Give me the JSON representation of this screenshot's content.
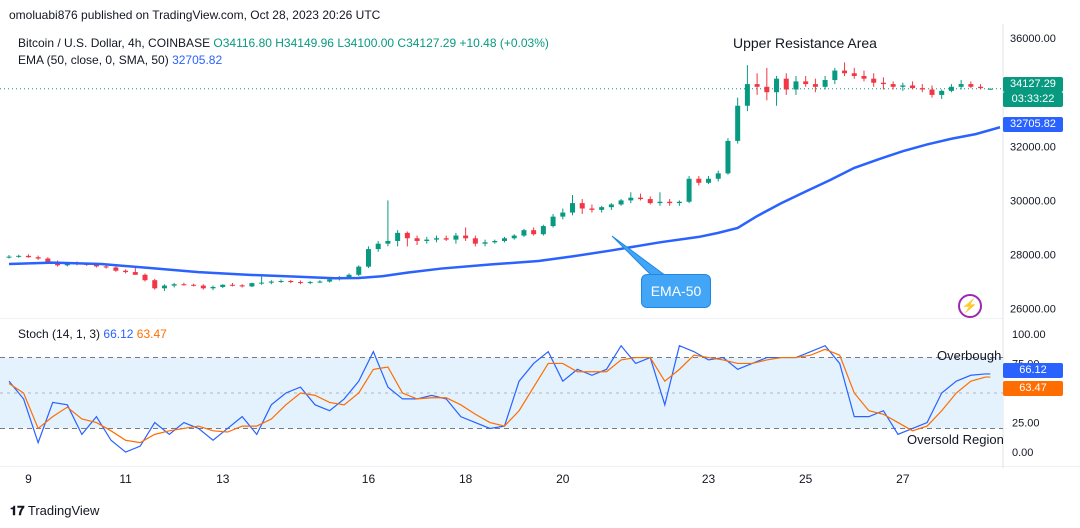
{
  "header": {
    "published": "omoluabi876 published on TradingView.com, Oct 28, 2023 20:26 UTC"
  },
  "legend": {
    "symbol": "Bitcoin / U.S. Dollar, 4h, COINBASE",
    "o": "O34116.80",
    "h": "H34149.96",
    "l": "L34100.00",
    "c": "C34127.29",
    "change": "+10.48 (+0.03%)",
    "ema_label": "EMA (50, close, 0, SMA, 50)",
    "ema_value": "32705.82",
    "stoch_label": "Stoch (14, 1, 3)",
    "stoch_k": "66.12",
    "stoch_d": "63.47"
  },
  "annotations": {
    "upper_resistance": "Upper Resistance Area",
    "ema_callout": "EMA-50",
    "overbought": "Overbough",
    "oversold": "Oversold Region"
  },
  "price_tags": {
    "last": "34127.29",
    "countdown": "03:33:22",
    "ema": "32705.82"
  },
  "stoch_tags": {
    "k": "66.12",
    "d": "63.47"
  },
  "footer": {
    "brand": "TradingView"
  },
  "colors": {
    "up": "#089981",
    "down": "#f23645",
    "ema": "#2962ff",
    "stoch_k": "#2962ff",
    "stoch_d": "#ff6d00",
    "band": "#e3f2fd",
    "callout": "#42a5f5"
  },
  "chart_data": [
    {
      "type": "line",
      "title": "Bitcoin / U.S. Dollar, 4h, COINBASE",
      "y_ticks": [
        "26000.00",
        "28000.00",
        "30000.00",
        "32000.00",
        "36000.00"
      ],
      "ylim": [
        25800,
        36300
      ],
      "x_ticks": [
        "9",
        "11",
        "13",
        "16",
        "18",
        "20",
        "23",
        "25",
        "27"
      ],
      "x_tick_days": [
        9,
        11,
        13,
        16,
        18,
        20,
        23,
        25,
        27
      ],
      "xlim": [
        8.6,
        29.0
      ],
      "series": [
        {
          "name": "EMA (50, close, 0, SMA, 50)",
          "x": [
            8.6,
            9.5,
            10.5,
            11.5,
            12.5,
            13.5,
            14.5,
            15.3,
            15.8,
            16.3,
            16.8,
            17.5,
            18.5,
            19.5,
            20.2,
            21,
            22,
            22.8,
            23.2,
            23.6,
            24.0,
            24.5,
            25,
            25.5,
            26,
            26.5,
            27,
            27.5,
            28,
            28.5,
            29.0
          ],
          "y": [
            27650,
            27700,
            27650,
            27500,
            27350,
            27250,
            27180,
            27120,
            27130,
            27200,
            27330,
            27480,
            27630,
            27760,
            27930,
            28150,
            28450,
            28650,
            28800,
            28980,
            29420,
            29900,
            30330,
            30750,
            31200,
            31520,
            31820,
            32070,
            32280,
            32450,
            32705
          ]
        }
      ],
      "candles_ohlc": [
        [
          8.6,
          27900,
          27980,
          27850,
          27920
        ],
        [
          8.8,
          27920,
          27990,
          27880,
          27950
        ],
        [
          9.0,
          27950,
          28010,
          27880,
          27900
        ],
        [
          9.2,
          27900,
          27960,
          27800,
          27850
        ],
        [
          9.4,
          27850,
          27900,
          27650,
          27700
        ],
        [
          9.6,
          27700,
          27780,
          27550,
          27600
        ],
        [
          9.8,
          27600,
          27720,
          27560,
          27680
        ],
        [
          10.0,
          27680,
          27740,
          27600,
          27650
        ],
        [
          10.2,
          27650,
          27700,
          27580,
          27620
        ],
        [
          10.4,
          27620,
          27680,
          27520,
          27560
        ],
        [
          10.6,
          27560,
          27620,
          27480,
          27520
        ],
        [
          10.8,
          27520,
          27560,
          27360,
          27400
        ],
        [
          11.0,
          27400,
          27450,
          27300,
          27350
        ],
        [
          11.2,
          27350,
          27500,
          27250,
          27250
        ],
        [
          11.4,
          27250,
          27300,
          27000,
          27050
        ],
        [
          11.6,
          27050,
          27100,
          26700,
          26750
        ],
        [
          11.8,
          26750,
          26900,
          26650,
          26850
        ],
        [
          12.0,
          26850,
          26950,
          26780,
          26900
        ],
        [
          12.2,
          26900,
          26960,
          26850,
          26880
        ],
        [
          12.4,
          26880,
          26920,
          26820,
          26850
        ],
        [
          12.6,
          26850,
          26900,
          26700,
          26750
        ],
        [
          12.8,
          26750,
          26850,
          26680,
          26800
        ],
        [
          13.0,
          26800,
          26900,
          26760,
          26880
        ],
        [
          13.2,
          26880,
          26950,
          26820,
          26860
        ],
        [
          13.4,
          26860,
          26900,
          26780,
          26820
        ],
        [
          13.6,
          26820,
          26960,
          26800,
          26940
        ],
        [
          13.8,
          26940,
          27180,
          26880,
          26960
        ],
        [
          14.0,
          26960,
          27050,
          26900,
          27000
        ],
        [
          14.2,
          27000,
          27080,
          26950,
          27020
        ],
        [
          14.4,
          27020,
          27060,
          26940,
          26980
        ],
        [
          14.6,
          26980,
          27040,
          26900,
          26950
        ],
        [
          14.8,
          26950,
          27020,
          26900,
          26980
        ],
        [
          15.0,
          26980,
          27050,
          26940,
          27000
        ],
        [
          15.2,
          27000,
          27100,
          26960,
          27080
        ],
        [
          15.4,
          27080,
          27200,
          27040,
          27150
        ],
        [
          15.6,
          27150,
          27300,
          27100,
          27250
        ],
        [
          15.8,
          27250,
          27600,
          27200,
          27550
        ],
        [
          16.0,
          27550,
          28300,
          27500,
          28200
        ],
        [
          16.2,
          28200,
          28500,
          28100,
          28400
        ],
        [
          16.4,
          28400,
          30000,
          28300,
          28500
        ],
        [
          16.6,
          28500,
          28900,
          28300,
          28800
        ],
        [
          16.8,
          28800,
          28850,
          28300,
          28600
        ],
        [
          17.0,
          28600,
          28700,
          28350,
          28500
        ],
        [
          17.2,
          28500,
          28650,
          28400,
          28550
        ],
        [
          17.4,
          28550,
          28700,
          28450,
          28600
        ],
        [
          17.6,
          28600,
          28700,
          28500,
          28550
        ],
        [
          17.8,
          28550,
          28800,
          28400,
          28700
        ],
        [
          18.0,
          28700,
          29000,
          28500,
          28600
        ],
        [
          18.2,
          28600,
          28700,
          28300,
          28400
        ],
        [
          18.4,
          28400,
          28550,
          28300,
          28450
        ],
        [
          18.6,
          28450,
          28550,
          28400,
          28500
        ],
        [
          18.8,
          28500,
          28650,
          28450,
          28600
        ],
        [
          19.0,
          28600,
          28750,
          28550,
          28700
        ],
        [
          19.2,
          28700,
          28950,
          28650,
          28900
        ],
        [
          19.4,
          28900,
          29000,
          28700,
          28750
        ],
        [
          19.6,
          28750,
          29100,
          28700,
          29050
        ],
        [
          19.8,
          29050,
          29500,
          29000,
          29400
        ],
        [
          20.0,
          29400,
          29700,
          29300,
          29550
        ],
        [
          20.2,
          29550,
          30200,
          29450,
          29900
        ],
        [
          20.4,
          29900,
          30050,
          29500,
          29700
        ],
        [
          20.6,
          29700,
          29850,
          29550,
          29650
        ],
        [
          20.8,
          29650,
          29800,
          29550,
          29750
        ],
        [
          21.0,
          29750,
          29900,
          29650,
          29850
        ],
        [
          21.2,
          29850,
          30050,
          29800,
          30000
        ],
        [
          21.4,
          30000,
          30300,
          29900,
          30100
        ],
        [
          21.6,
          30100,
          30250,
          30000,
          30050
        ],
        [
          21.8,
          30050,
          30150,
          29850,
          29900
        ],
        [
          22.0,
          29900,
          30300,
          29800,
          29950
        ],
        [
          22.2,
          29950,
          30050,
          29800,
          29900
        ],
        [
          22.4,
          29900,
          30000,
          29800,
          29950
        ],
        [
          22.6,
          29950,
          30900,
          29900,
          30800
        ],
        [
          22.8,
          30800,
          30900,
          30550,
          30650
        ],
        [
          23.0,
          30650,
          30900,
          30600,
          30800
        ],
        [
          23.2,
          30800,
          31100,
          30700,
          31000
        ],
        [
          23.4,
          31000,
          32300,
          30950,
          32200
        ],
        [
          23.6,
          32200,
          33800,
          32100,
          33500
        ],
        [
          23.8,
          33500,
          35000,
          33300,
          34300
        ],
        [
          24.0,
          34300,
          34700,
          33900,
          34200
        ],
        [
          24.2,
          34200,
          34900,
          33700,
          34000
        ],
        [
          24.4,
          34000,
          34600,
          33500,
          34500
        ],
        [
          24.6,
          34500,
          34700,
          33900,
          34100
        ],
        [
          24.8,
          34100,
          34600,
          33900,
          34400
        ],
        [
          25.0,
          34400,
          34600,
          34200,
          34300
        ],
        [
          25.2,
          34300,
          34500,
          34000,
          34200
        ],
        [
          25.4,
          34200,
          34600,
          34100,
          34450
        ],
        [
          25.6,
          34450,
          34900,
          34300,
          34800
        ],
        [
          25.8,
          34800,
          35100,
          34600,
          34700
        ],
        [
          26.0,
          34700,
          34900,
          34500,
          34600
        ],
        [
          26.2,
          34600,
          34800,
          34400,
          34500
        ],
        [
          26.4,
          34500,
          34700,
          34200,
          34350
        ],
        [
          26.6,
          34350,
          34550,
          34100,
          34300
        ],
        [
          26.8,
          34300,
          34400,
          34100,
          34200
        ],
        [
          27.0,
          34200,
          34350,
          34050,
          34250
        ],
        [
          27.2,
          34250,
          34400,
          34100,
          34150
        ],
        [
          27.4,
          34150,
          34300,
          34000,
          34100
        ],
        [
          27.6,
          34100,
          34250,
          33800,
          33900
        ],
        [
          27.8,
          33900,
          34100,
          33750,
          34050
        ],
        [
          28.0,
          34050,
          34300,
          34000,
          34200
        ],
        [
          28.2,
          34200,
          34450,
          34100,
          34300
        ],
        [
          28.4,
          34300,
          34400,
          34150,
          34200
        ],
        [
          28.6,
          34200,
          34300,
          34100,
          34150
        ],
        [
          28.8,
          34116.8,
          34149.96,
          34100,
          34127.29
        ]
      ]
    },
    {
      "type": "line",
      "title": "Stoch (14, 1, 3)",
      "y_ticks": [
        "0.00",
        "25.00",
        "75.00",
        "100.00"
      ],
      "ylim": [
        -5,
        105
      ],
      "bands": [
        20,
        80
      ],
      "xlim": [
        8.6,
        29.0
      ],
      "series": [
        {
          "name": "%K",
          "x": [
            8.6,
            8.9,
            9.2,
            9.5,
            9.8,
            10.1,
            10.4,
            10.7,
            11.0,
            11.3,
            11.6,
            11.9,
            12.2,
            12.5,
            12.8,
            13.1,
            13.4,
            13.7,
            14.0,
            14.3,
            14.6,
            14.9,
            15.2,
            15.5,
            15.8,
            16.1,
            16.4,
            16.7,
            17.0,
            17.3,
            17.6,
            17.9,
            18.2,
            18.5,
            18.8,
            19.1,
            19.4,
            19.7,
            20.0,
            20.3,
            20.6,
            20.9,
            21.2,
            21.5,
            21.8,
            22.1,
            22.4,
            22.7,
            23.0,
            23.3,
            23.6,
            23.9,
            24.2,
            24.5,
            24.8,
            25.1,
            25.4,
            25.7,
            26.0,
            26.3,
            26.6,
            26.9,
            27.2,
            27.5,
            27.8,
            28.1,
            28.4,
            28.7,
            28.8
          ],
          "y": [
            60,
            45,
            8,
            42,
            40,
            15,
            30,
            10,
            0,
            5,
            25,
            15,
            25,
            20,
            10,
            20,
            30,
            15,
            40,
            50,
            55,
            40,
            35,
            45,
            60,
            85,
            55,
            45,
            45,
            48,
            45,
            30,
            25,
            20,
            22,
            60,
            75,
            85,
            60,
            70,
            65,
            70,
            90,
            75,
            80,
            40,
            90,
            85,
            78,
            80,
            70,
            75,
            80,
            80,
            80,
            85,
            90,
            75,
            30,
            30,
            35,
            15,
            20,
            25,
            50,
            60,
            65,
            66.12,
            66.12
          ]
        },
        {
          "name": "%D",
          "x": [
            8.6,
            8.9,
            9.2,
            9.5,
            9.8,
            10.1,
            10.4,
            10.7,
            11.0,
            11.3,
            11.6,
            11.9,
            12.2,
            12.5,
            12.8,
            13.1,
            13.4,
            13.7,
            14.0,
            14.3,
            14.6,
            14.9,
            15.2,
            15.5,
            15.8,
            16.1,
            16.4,
            16.7,
            17.0,
            17.3,
            17.6,
            17.9,
            18.2,
            18.5,
            18.8,
            19.1,
            19.4,
            19.7,
            20.0,
            20.3,
            20.6,
            20.9,
            21.2,
            21.5,
            21.8,
            22.1,
            22.4,
            22.7,
            23.0,
            23.3,
            23.6,
            23.9,
            24.2,
            24.5,
            24.8,
            25.1,
            25.4,
            25.7,
            26.0,
            26.3,
            26.6,
            26.9,
            27.2,
            27.5,
            27.8,
            28.1,
            28.4,
            28.7,
            28.8
          ],
          "y": [
            58,
            50,
            20,
            30,
            38,
            28,
            25,
            18,
            10,
            8,
            15,
            18,
            20,
            22,
            18,
            17,
            22,
            22,
            28,
            40,
            50,
            48,
            42,
            40,
            50,
            70,
            72,
            50,
            45,
            46,
            46,
            40,
            32,
            25,
            22,
            35,
            55,
            75,
            75,
            68,
            68,
            68,
            78,
            80,
            80,
            60,
            70,
            82,
            80,
            78,
            75,
            75,
            78,
            80,
            80,
            82,
            87,
            82,
            50,
            35,
            32,
            25,
            18,
            22,
            35,
            50,
            60,
            63.47,
            63.47
          ]
        }
      ]
    }
  ]
}
